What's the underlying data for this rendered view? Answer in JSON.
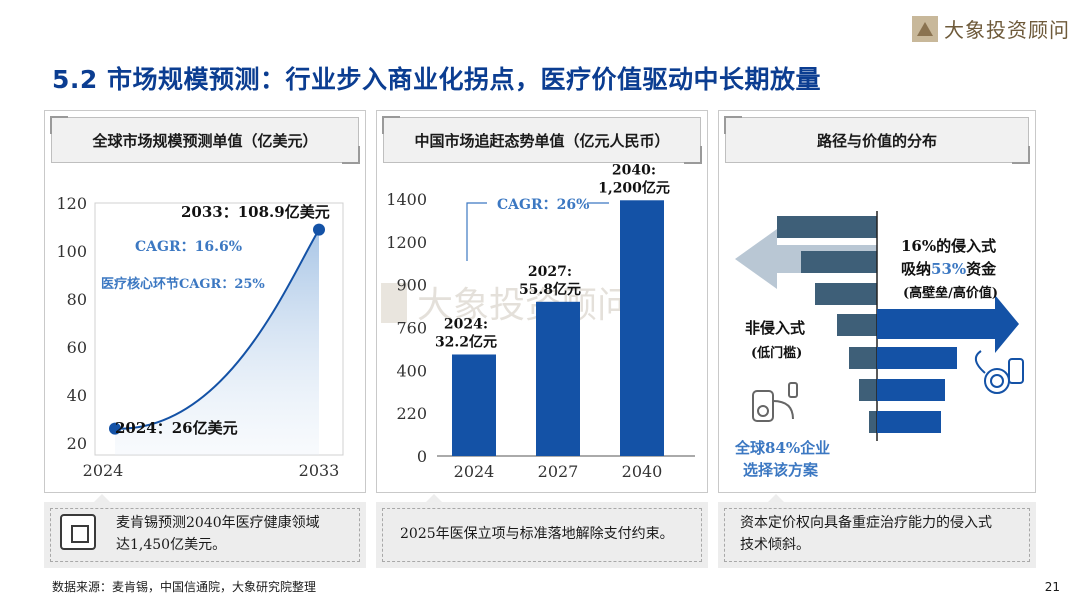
{
  "brand": {
    "name": "大象投资顾问"
  },
  "page_title": "5.2 市场规模预测：行业步入商业化拐点，医疗价值驱动中长期放量",
  "panels": [
    {
      "title": "全球市场规模预测单值（亿美元）"
    },
    {
      "title": "中国市场追赶态势单值（亿元人民币）"
    },
    {
      "title": "路径与价值的分布"
    }
  ],
  "notes": [
    {
      "text": [
        "麦肯锡预测2040年医疗健康领域",
        "达1,450亿美元。"
      ]
    },
    {
      "text": [
        "2025年医保立项与标准落地解除支付约束。"
      ]
    },
    {
      "text": [
        "资本定价权向具备重症治疗能力的侵入式",
        "技术倾斜。"
      ]
    }
  ],
  "source": "数据来源：麦肯锡，中国信通院，大象研究院整理",
  "page_number": "21",
  "colors": {
    "accent": "#0b3d91",
    "bar": "#1452a6",
    "cagr": "#3c78c2",
    "arrow_dark": "#3e5f78",
    "arrow_light": "#b9c7d4"
  },
  "chart_data": [
    {
      "type": "area",
      "title": "全球市场规模预测单值（亿美元）",
      "x": [
        2024,
        2033
      ],
      "values": [
        26,
        108.9
      ],
      "x_ticks": [
        "2024",
        "2033"
      ],
      "y_ticks": [
        "20",
        "40",
        "60",
        "80",
        "100",
        "120"
      ],
      "ylim": [
        15,
        120
      ],
      "annotations": {
        "start": "2024：26亿美元",
        "end": "2033：108.9亿美元",
        "cagr": "CAGR：16.6%",
        "core_cagr": "医疗核心环节CAGR：25%"
      }
    },
    {
      "type": "bar",
      "title": "中国市场追赶态势单值（亿元人民币）",
      "categories": [
        "2024",
        "2027",
        "2040"
      ],
      "values": [
        32.2,
        55.8,
        1200
      ],
      "bar_heights_frac": [
        0.395,
        0.6,
        0.995
      ],
      "y_ticks": [
        "0",
        "220",
        "400",
        "760",
        "900",
        "1200",
        "1400"
      ],
      "data_labels": [
        [
          "2024:",
          "32.2亿元"
        ],
        [
          "2027:",
          "55.8亿元"
        ],
        [
          "2040:",
          "1,200亿元"
        ]
      ],
      "cagr": "CAGR：26%",
      "watermark": "大象投资顾问"
    },
    {
      "type": "diagram",
      "title": "路径与价值的分布",
      "invasive": {
        "line1_pre": "16%的侵入式",
        "line2_pre": "吸纳",
        "line2_hl": "53%",
        "line2_post": "资金",
        "line3": "(高壁垒/高价值)"
      },
      "non_invasive": {
        "line1": "非侵入式",
        "line2": "(低门槛)"
      },
      "enterprise": {
        "line1": "全球84%企业",
        "line2": "选择该方案"
      }
    }
  ]
}
